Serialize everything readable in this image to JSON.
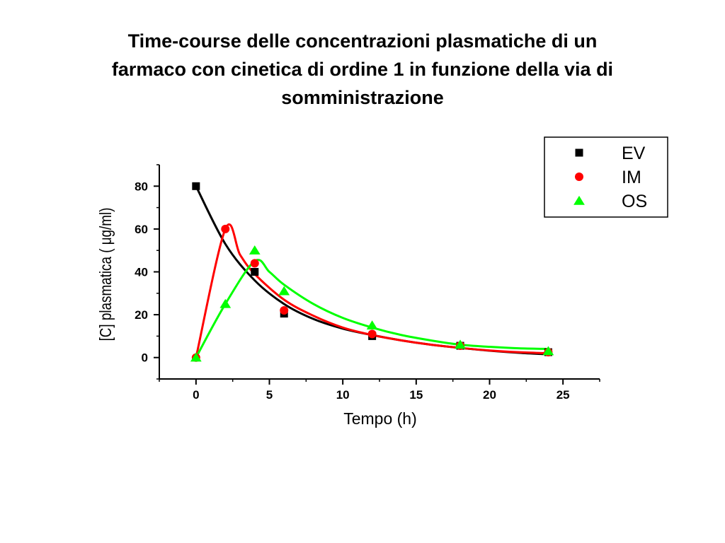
{
  "title_lines": [
    "Time-course delle concentrazioni plasmatiche di un",
    "farmaco con cinetica di ordine 1 in funzione della via di",
    "somministrazione"
  ],
  "chart_data": {
    "type": "scatter",
    "title": "Time-course delle concentrazioni plasmatiche di un farmaco con cinetica di ordine 1 in funzione della via di somministrazione",
    "xlabel": "Tempo (h)",
    "ylabel": "[C] plasmatica  ( μg/ml)",
    "xlim": [
      -2.5,
      27.5
    ],
    "ylim": [
      -10,
      90
    ],
    "xticks": [
      0,
      5,
      10,
      15,
      20,
      25
    ],
    "yticks": [
      0,
      20,
      40,
      60,
      80
    ],
    "xtick_labels": [
      "0",
      "5",
      "10",
      "15",
      "20",
      "25"
    ],
    "ytick_labels": [
      "0",
      "20",
      "40",
      "60",
      "80"
    ],
    "grid": false,
    "legend_position": "top-right",
    "series": [
      {
        "name": "EV",
        "marker": "square",
        "color": "#000000",
        "x": [
          0,
          4,
          6,
          12,
          18,
          24
        ],
        "y": [
          80,
          40,
          20.5,
          10,
          5.5,
          2.5
        ],
        "fit": {
          "x": [
            0,
            2,
            4,
            6,
            8,
            10,
            12,
            14,
            16,
            18,
            20,
            22,
            24
          ],
          "y": [
            80,
            53,
            36,
            25,
            18,
            13.5,
            10.5,
            8,
            6,
            4.5,
            3.2,
            2.2,
            1.5
          ]
        }
      },
      {
        "name": "IM",
        "marker": "circle",
        "color": "#ff0000",
        "x": [
          0,
          2,
          4,
          6,
          12,
          18,
          24
        ],
        "y": [
          0,
          60,
          44,
          22,
          11,
          5.5,
          2.5
        ],
        "fit": {
          "x": [
            0,
            2,
            3,
            4,
            6,
            8,
            10,
            12,
            14,
            16,
            18,
            20,
            22,
            24
          ],
          "y": [
            0,
            60,
            48,
            39,
            27,
            19.5,
            14,
            10.5,
            8,
            6,
            4.5,
            3.3,
            2.5,
            2
          ]
        }
      },
      {
        "name": "OS",
        "marker": "triangle",
        "color": "#00ff00",
        "x": [
          0,
          2,
          4,
          6,
          12,
          18,
          24
        ],
        "y": [
          0,
          25,
          50,
          31,
          15,
          6,
          3
        ],
        "fit": {
          "x": [
            0,
            2,
            4,
            5,
            6,
            8,
            10,
            12,
            14,
            16,
            18,
            20,
            22,
            24
          ],
          "y": [
            0,
            25,
            45,
            40,
            34,
            25,
            18.5,
            14,
            10.5,
            8,
            6,
            5,
            4.3,
            4
          ]
        }
      }
    ]
  }
}
